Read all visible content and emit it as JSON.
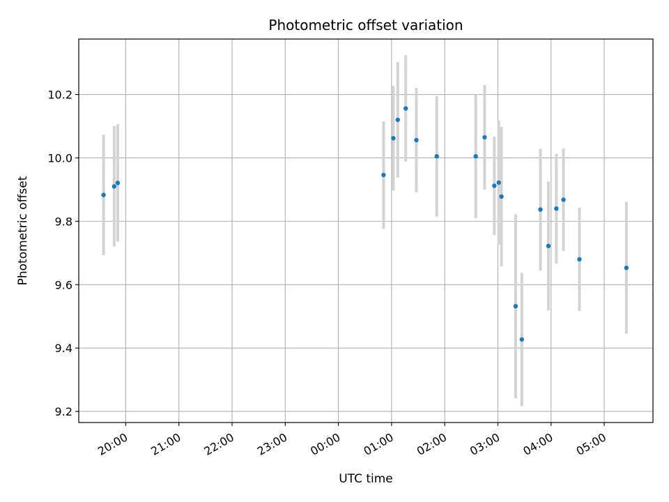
{
  "chart_data": {
    "type": "scatter",
    "title": "Photometric offset variation",
    "xlabel": "UTC time",
    "ylabel": "Photometric offset",
    "x_axis": "time",
    "x_tick_labels": [
      "20:00",
      "21:00",
      "22:00",
      "23:00",
      "00:00",
      "01:00",
      "02:00",
      "03:00",
      "04:00",
      "05:00"
    ],
    "y_ticks": [
      9.2,
      9.4,
      9.6,
      9.8,
      10.0,
      10.2
    ],
    "y_tick_labels": [
      "9.2",
      "9.4",
      "9.6",
      "9.8",
      "10.0",
      "10.2"
    ],
    "xlim": [
      "19:07",
      "05:55"
    ],
    "ylim": [
      9.165,
      10.375
    ],
    "grid": true,
    "point_color": "#1f77b4",
    "errorbar_color": "#d3d3d3",
    "points": [
      {
        "x": "19:35",
        "y": 9.883,
        "err": 0.19
      },
      {
        "x": "19:47",
        "y": 9.91,
        "err": 0.19
      },
      {
        "x": "19:51",
        "y": 9.921,
        "err": 0.185
      },
      {
        "x": "00:51",
        "y": 9.946,
        "err": 0.17
      },
      {
        "x": "01:02",
        "y": 10.062,
        "err": 0.165
      },
      {
        "x": "01:07",
        "y": 10.12,
        "err": 0.182
      },
      {
        "x": "01:16",
        "y": 10.156,
        "err": 0.168
      },
      {
        "x": "01:28",
        "y": 10.056,
        "err": 0.165
      },
      {
        "x": "01:51",
        "y": 10.005,
        "err": 0.19
      },
      {
        "x": "02:35",
        "y": 10.005,
        "err": 0.195
      },
      {
        "x": "02:45",
        "y": 10.065,
        "err": 0.165
      },
      {
        "x": "02:56",
        "y": 9.912,
        "err": 0.155
      },
      {
        "x": "03:01",
        "y": 9.922,
        "err": 0.195
      },
      {
        "x": "03:04",
        "y": 9.878,
        "err": 0.22
      },
      {
        "x": "03:20",
        "y": 9.532,
        "err": 0.29
      },
      {
        "x": "03:27",
        "y": 9.427,
        "err": 0.21
      },
      {
        "x": "03:48",
        "y": 9.837,
        "err": 0.192
      },
      {
        "x": "03:57",
        "y": 9.722,
        "err": 0.203
      },
      {
        "x": "04:06",
        "y": 9.84,
        "err": 0.173
      },
      {
        "x": "04:14",
        "y": 9.868,
        "err": 0.162
      },
      {
        "x": "04:32",
        "y": 9.68,
        "err": 0.163
      },
      {
        "x": "05:25",
        "y": 9.653,
        "err": 0.208
      }
    ]
  }
}
